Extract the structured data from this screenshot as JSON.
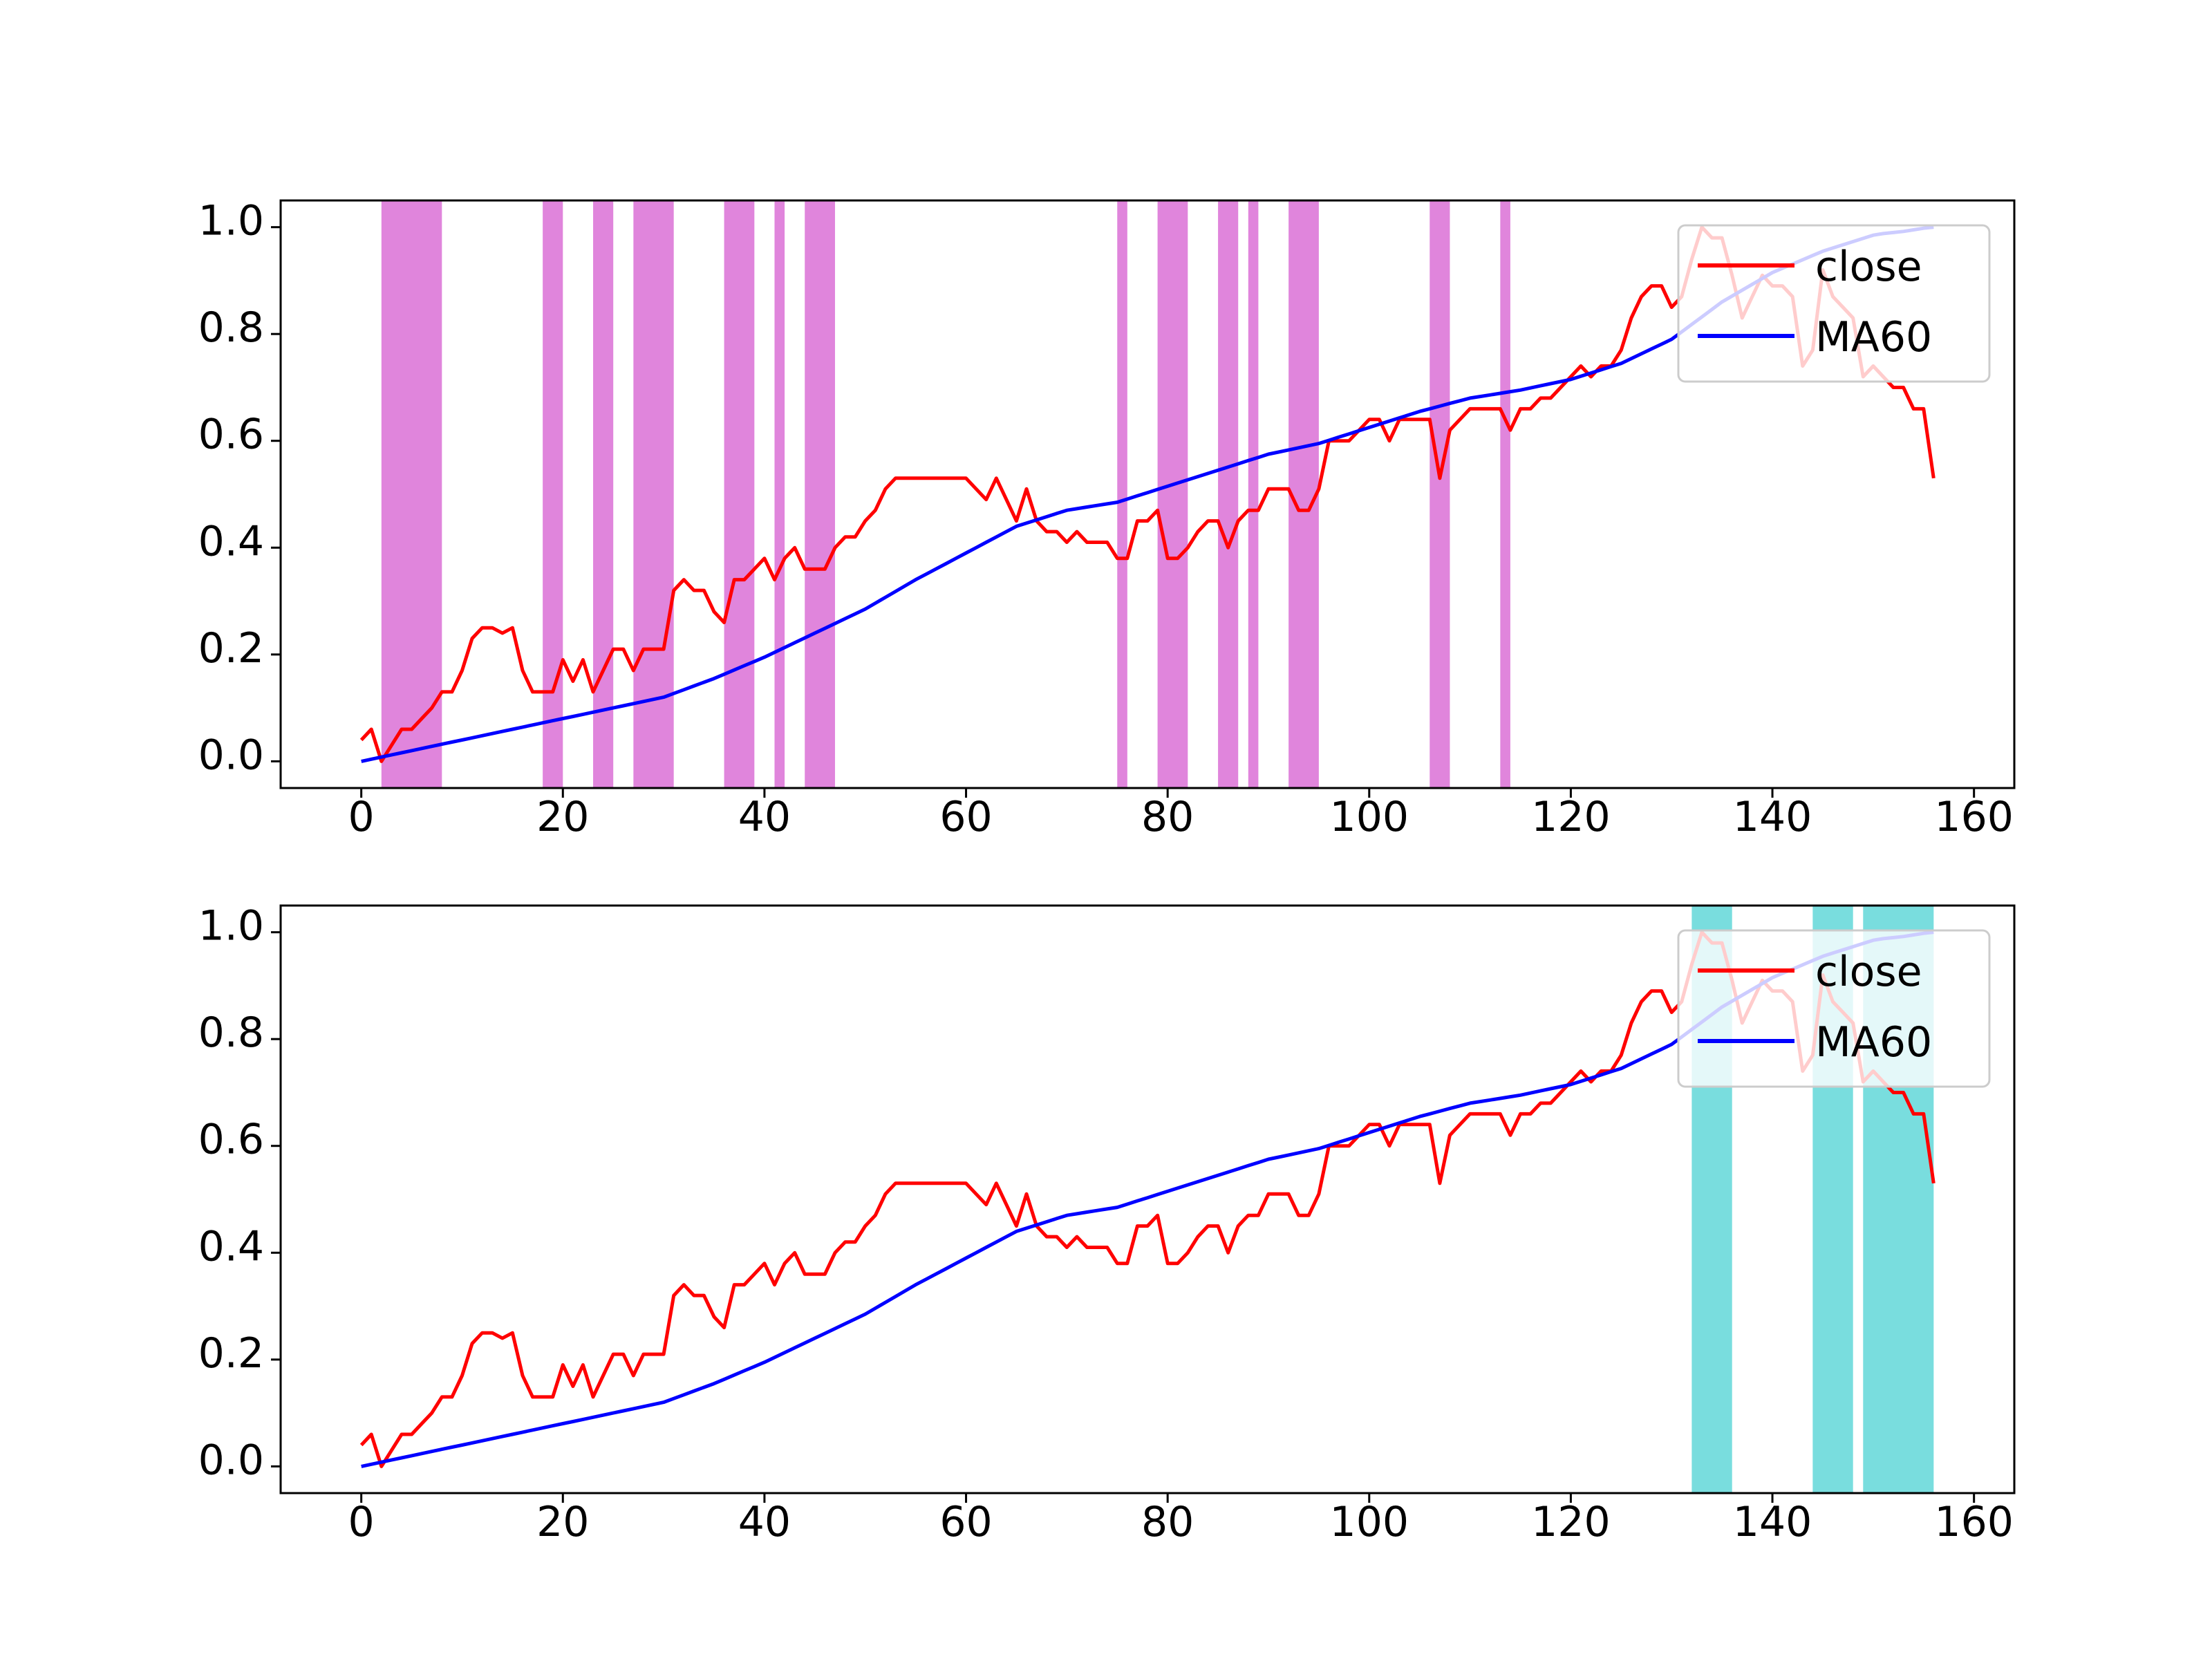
{
  "chart_data": [
    {
      "type": "line",
      "title": "",
      "xlabel": "",
      "ylabel": "",
      "xlim": [
        -8,
        164
      ],
      "ylim": [
        -0.05,
        1.05
      ],
      "xticks": [
        "0",
        "20",
        "40",
        "60",
        "80",
        "100",
        "120",
        "140",
        "160"
      ],
      "yticks": [
        "0.0",
        "0.2",
        "0.4",
        "0.6",
        "0.8",
        "1.0"
      ],
      "grid": false,
      "legend_position": "top-right",
      "highlight_color": "#da70d6",
      "highlight_opacity": 0.85,
      "highlight_spans": [
        [
          2,
          8
        ],
        [
          18,
          20
        ],
        [
          23,
          25
        ],
        [
          27,
          31
        ],
        [
          36,
          39
        ],
        [
          41,
          42
        ],
        [
          44,
          47
        ],
        [
          75,
          76
        ],
        [
          79,
          82
        ],
        [
          85,
          87
        ],
        [
          88,
          89
        ],
        [
          92,
          95
        ],
        [
          106,
          108
        ],
        [
          113,
          114
        ]
      ],
      "series": [
        {
          "name": "close",
          "color": "#ff0000",
          "values": []
        },
        {
          "name": "MA60",
          "color": "#0000ff",
          "values": []
        }
      ]
    },
    {
      "type": "line",
      "title": "",
      "xlabel": "",
      "ylabel": "",
      "xlim": [
        -8,
        164
      ],
      "ylim": [
        -0.05,
        1.05
      ],
      "xticks": [
        "0",
        "20",
        "40",
        "60",
        "80",
        "100",
        "120",
        "140",
        "160"
      ],
      "yticks": [
        "0.0",
        "0.2",
        "0.4",
        "0.6",
        "0.8",
        "1.0"
      ],
      "grid": false,
      "legend_position": "top-right",
      "highlight_color": "#40cfd0",
      "highlight_opacity": 0.7,
      "highlight_spans": [
        [
          132,
          136
        ],
        [
          144,
          148
        ],
        [
          149,
          156
        ]
      ],
      "series": [
        {
          "name": "close",
          "color": "#ff0000",
          "values": []
        },
        {
          "name": "MA60",
          "color": "#0000ff",
          "values": []
        }
      ]
    }
  ],
  "shared_series": {
    "close_anchors": [
      [
        0,
        0.04
      ],
      [
        1,
        0.06
      ],
      [
        2,
        0.0
      ],
      [
        3,
        0.03
      ],
      [
        4,
        0.06
      ],
      [
        5,
        0.06
      ],
      [
        6,
        0.08
      ],
      [
        7,
        0.1
      ],
      [
        8,
        0.13
      ],
      [
        9,
        0.13
      ],
      [
        10,
        0.17
      ],
      [
        11,
        0.23
      ],
      [
        12,
        0.25
      ],
      [
        13,
        0.25
      ],
      [
        14,
        0.24
      ],
      [
        15,
        0.25
      ],
      [
        16,
        0.17
      ],
      [
        17,
        0.13
      ],
      [
        18,
        0.13
      ],
      [
        19,
        0.13
      ],
      [
        20,
        0.19
      ],
      [
        21,
        0.15
      ],
      [
        22,
        0.19
      ],
      [
        23,
        0.13
      ],
      [
        24,
        0.17
      ],
      [
        25,
        0.21
      ],
      [
        26,
        0.21
      ],
      [
        27,
        0.17
      ],
      [
        28,
        0.21
      ],
      [
        29,
        0.21
      ],
      [
        30,
        0.21
      ],
      [
        31,
        0.32
      ],
      [
        32,
        0.34
      ],
      [
        33,
        0.32
      ],
      [
        34,
        0.32
      ],
      [
        35,
        0.28
      ],
      [
        36,
        0.26
      ],
      [
        37,
        0.34
      ],
      [
        38,
        0.34
      ],
      [
        39,
        0.36
      ],
      [
        40,
        0.38
      ],
      [
        41,
        0.34
      ],
      [
        42,
        0.38
      ],
      [
        43,
        0.4
      ],
      [
        44,
        0.36
      ],
      [
        45,
        0.36
      ],
      [
        46,
        0.36
      ],
      [
        47,
        0.4
      ],
      [
        48,
        0.42
      ],
      [
        49,
        0.42
      ],
      [
        50,
        0.45
      ],
      [
        51,
        0.47
      ],
      [
        52,
        0.51
      ],
      [
        53,
        0.53
      ],
      [
        54,
        0.53
      ],
      [
        55,
        0.53
      ],
      [
        56,
        0.53
      ],
      [
        57,
        0.53
      ],
      [
        58,
        0.53
      ],
      [
        59,
        0.53
      ],
      [
        60,
        0.53
      ],
      [
        61,
        0.51
      ],
      [
        62,
        0.49
      ],
      [
        63,
        0.53
      ],
      [
        64,
        0.49
      ],
      [
        65,
        0.45
      ],
      [
        66,
        0.51
      ],
      [
        67,
        0.45
      ],
      [
        68,
        0.43
      ],
      [
        69,
        0.43
      ],
      [
        70,
        0.41
      ],
      [
        71,
        0.43
      ],
      [
        72,
        0.41
      ],
      [
        73,
        0.41
      ],
      [
        74,
        0.41
      ],
      [
        75,
        0.38
      ],
      [
        76,
        0.38
      ],
      [
        77,
        0.45
      ],
      [
        78,
        0.45
      ],
      [
        79,
        0.47
      ],
      [
        80,
        0.38
      ],
      [
        81,
        0.38
      ],
      [
        82,
        0.4
      ],
      [
        83,
        0.43
      ],
      [
        84,
        0.45
      ],
      [
        85,
        0.45
      ],
      [
        86,
        0.4
      ],
      [
        87,
        0.45
      ],
      [
        88,
        0.47
      ],
      [
        89,
        0.47
      ],
      [
        90,
        0.51
      ],
      [
        91,
        0.51
      ],
      [
        92,
        0.51
      ],
      [
        93,
        0.47
      ],
      [
        94,
        0.47
      ],
      [
        95,
        0.51
      ],
      [
        96,
        0.6
      ],
      [
        97,
        0.6
      ],
      [
        98,
        0.6
      ],
      [
        99,
        0.62
      ],
      [
        100,
        0.64
      ],
      [
        101,
        0.64
      ],
      [
        102,
        0.6
      ],
      [
        103,
        0.64
      ],
      [
        104,
        0.64
      ],
      [
        105,
        0.64
      ],
      [
        106,
        0.64
      ],
      [
        107,
        0.53
      ],
      [
        108,
        0.62
      ],
      [
        109,
        0.64
      ],
      [
        110,
        0.66
      ],
      [
        111,
        0.66
      ],
      [
        112,
        0.66
      ],
      [
        113,
        0.66
      ],
      [
        114,
        0.62
      ],
      [
        115,
        0.66
      ],
      [
        116,
        0.66
      ],
      [
        117,
        0.68
      ],
      [
        118,
        0.68
      ],
      [
        119,
        0.7
      ],
      [
        120,
        0.72
      ],
      [
        121,
        0.74
      ],
      [
        122,
        0.72
      ],
      [
        123,
        0.74
      ],
      [
        124,
        0.74
      ],
      [
        125,
        0.77
      ],
      [
        126,
        0.83
      ],
      [
        127,
        0.87
      ],
      [
        128,
        0.89
      ],
      [
        129,
        0.89
      ],
      [
        130,
        0.85
      ],
      [
        131,
        0.87
      ],
      [
        132,
        0.94
      ],
      [
        133,
        1.0
      ],
      [
        134,
        0.98
      ],
      [
        135,
        0.98
      ],
      [
        136,
        0.91
      ],
      [
        137,
        0.83
      ],
      [
        138,
        0.87
      ],
      [
        139,
        0.91
      ],
      [
        140,
        0.89
      ],
      [
        141,
        0.89
      ],
      [
        142,
        0.87
      ],
      [
        143,
        0.74
      ],
      [
        144,
        0.77
      ],
      [
        145,
        0.92
      ],
      [
        146,
        0.87
      ],
      [
        147,
        0.85
      ],
      [
        148,
        0.83
      ],
      [
        149,
        0.72
      ],
      [
        150,
        0.74
      ],
      [
        151,
        0.72
      ],
      [
        152,
        0.7
      ],
      [
        153,
        0.7
      ],
      [
        154,
        0.66
      ],
      [
        155,
        0.66
      ],
      [
        156,
        0.53
      ]
    ],
    "ma_anchors": [
      [
        0,
        0.0
      ],
      [
        5,
        0.02
      ],
      [
        10,
        0.04
      ],
      [
        15,
        0.06
      ],
      [
        20,
        0.08
      ],
      [
        25,
        0.1
      ],
      [
        30,
        0.12
      ],
      [
        35,
        0.155
      ],
      [
        40,
        0.195
      ],
      [
        45,
        0.24
      ],
      [
        50,
        0.285
      ],
      [
        55,
        0.34
      ],
      [
        60,
        0.39
      ],
      [
        65,
        0.44
      ],
      [
        70,
        0.47
      ],
      [
        75,
        0.485
      ],
      [
        80,
        0.515
      ],
      [
        85,
        0.545
      ],
      [
        90,
        0.575
      ],
      [
        95,
        0.595
      ],
      [
        100,
        0.625
      ],
      [
        105,
        0.655
      ],
      [
        110,
        0.68
      ],
      [
        115,
        0.695
      ],
      [
        120,
        0.715
      ],
      [
        125,
        0.745
      ],
      [
        130,
        0.79
      ],
      [
        135,
        0.86
      ],
      [
        140,
        0.915
      ],
      [
        145,
        0.955
      ],
      [
        150,
        0.985
      ],
      [
        156,
        1.0
      ]
    ]
  }
}
